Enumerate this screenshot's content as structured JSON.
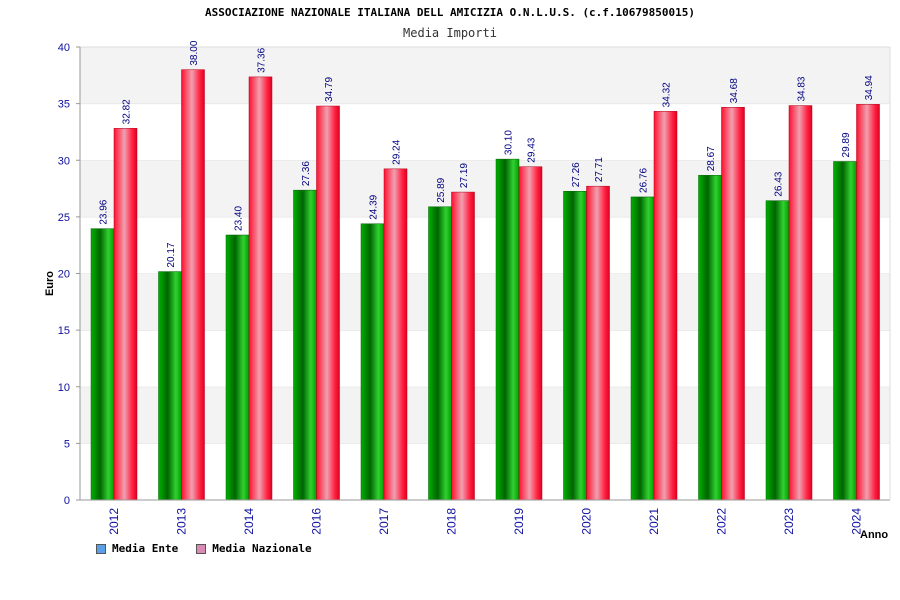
{
  "chart_data": {
    "type": "bar",
    "title": "ASSOCIAZIONE NAZIONALE ITALIANA DELL AMICIZIA O.N.L.U.S. (c.f.10679850015)",
    "subtitle": "Media Importi",
    "xlabel": "Anno",
    "ylabel": "Euro",
    "ylim": [
      0,
      40
    ],
    "yticks": [
      "0",
      "5",
      "10",
      "15",
      "20",
      "25",
      "30",
      "35",
      "40"
    ],
    "grid": true,
    "legend_position": "bottom-left",
    "categories": [
      "2012",
      "2013",
      "2014",
      "2016",
      "2017",
      "2018",
      "2019",
      "2020",
      "2021",
      "2022",
      "2023",
      "2024"
    ],
    "series": [
      {
        "name": "Media Ente",
        "color": "#00a000",
        "values": [
          23.96,
          20.17,
          23.4,
          27.36,
          24.39,
          25.89,
          30.1,
          27.26,
          26.76,
          28.67,
          26.43,
          29.89
        ],
        "labels": [
          "23.96",
          "20.17",
          "23.40",
          "27.36",
          "24.39",
          "25.89",
          "30.10",
          "27.26",
          "26.76",
          "28.67",
          "26.43",
          "29.89"
        ]
      },
      {
        "name": "Media Nazionale",
        "color": "#e8001c",
        "values": [
          32.82,
          38.0,
          37.36,
          34.79,
          29.24,
          27.19,
          29.43,
          27.71,
          34.32,
          34.68,
          34.83,
          34.94
        ],
        "labels": [
          "32.82",
          "38.00",
          "37.36",
          "34.79",
          "29.24",
          "27.19",
          "29.43",
          "27.71",
          "34.32",
          "34.68",
          "34.83",
          "34.94"
        ]
      }
    ],
    "legend": [
      {
        "label": "Media Ente",
        "swatch_color": "#5aa0e6"
      },
      {
        "label": "Media Nazionale",
        "swatch_color": "#d98bb4"
      }
    ]
  }
}
